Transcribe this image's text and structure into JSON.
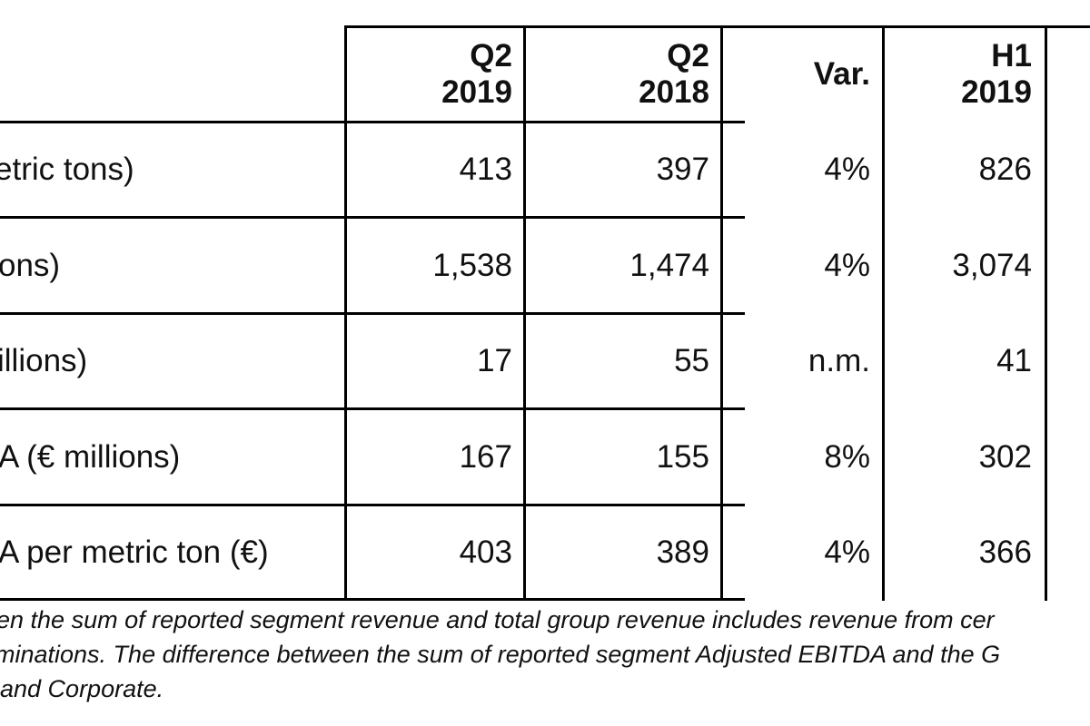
{
  "table": {
    "headers": [
      {
        "line1": "Q2",
        "line2": "2019"
      },
      {
        "line1": "Q2",
        "line2": "2018"
      },
      {
        "line1": "Var.",
        "line2": ""
      },
      {
        "line1": "H1",
        "line2": "2019"
      }
    ],
    "rows": [
      {
        "label": "etric tons)",
        "values": [
          "413",
          "397",
          "4%",
          "826"
        ]
      },
      {
        "label": "ons)",
        "values": [
          "1,538",
          "1,474",
          "4%",
          "3,074"
        ]
      },
      {
        "label": "illions)",
        "values": [
          "17",
          "55",
          "n.m.",
          "41"
        ]
      },
      {
        "label": "A (€ millions)",
        "values": [
          "167",
          "155",
          "8%",
          "302"
        ]
      },
      {
        "label": "A per metric ton (€)",
        "values": [
          "403",
          "389",
          "4%",
          "366"
        ]
      }
    ]
  },
  "footnote": {
    "lines": [
      "en the sum of reported segment revenue and total group revenue includes revenue from cer",
      "minations. The difference between the sum of reported segment Adjusted EBITDA and the G",
      " and Corporate."
    ]
  }
}
